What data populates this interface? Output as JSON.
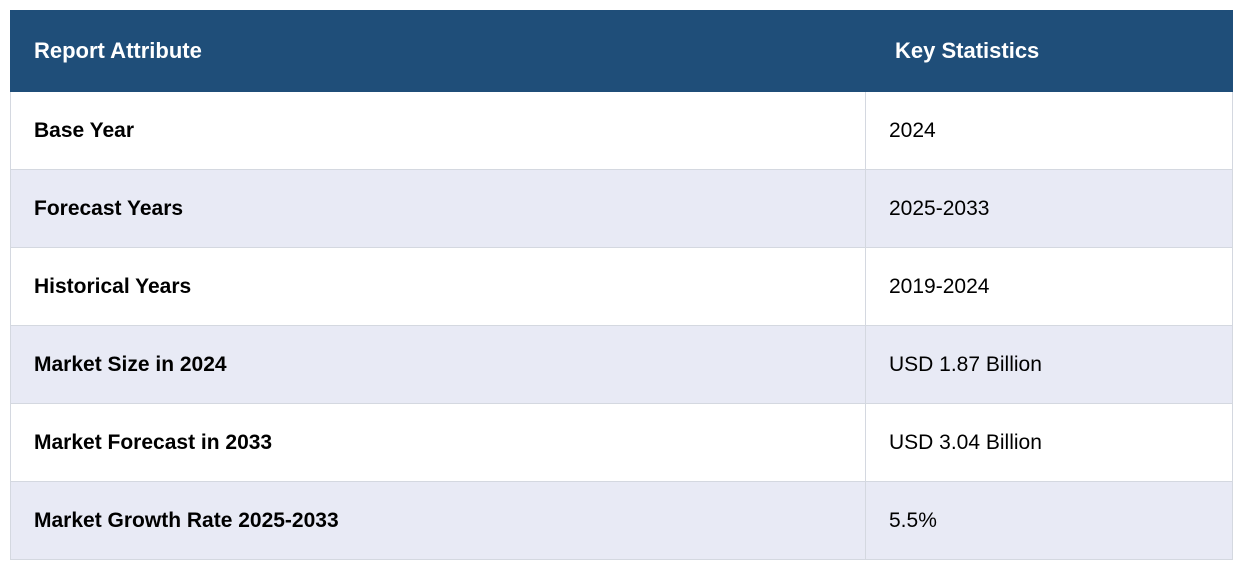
{
  "table": {
    "headers": [
      "Report Attribute",
      "Key Statistics"
    ],
    "rows": [
      {
        "attribute": "Base Year",
        "value": "2024"
      },
      {
        "attribute": "Forecast Years",
        "value": "2025-2033"
      },
      {
        "attribute": "Historical Years",
        "value": "2019-2024"
      },
      {
        "attribute": "Market Size in 2024",
        "value": "USD 1.87 Billion"
      },
      {
        "attribute": "Market Forecast in 2033",
        "value": "USD 3.04 Billion"
      },
      {
        "attribute": "Market Growth Rate 2025-2033",
        "value": "5.5%"
      }
    ]
  },
  "colors": {
    "header_bg": "#1f4e79",
    "header_text": "#ffffff",
    "alt_row_bg": "#e8eaf5",
    "border": "#d4d8e0"
  }
}
